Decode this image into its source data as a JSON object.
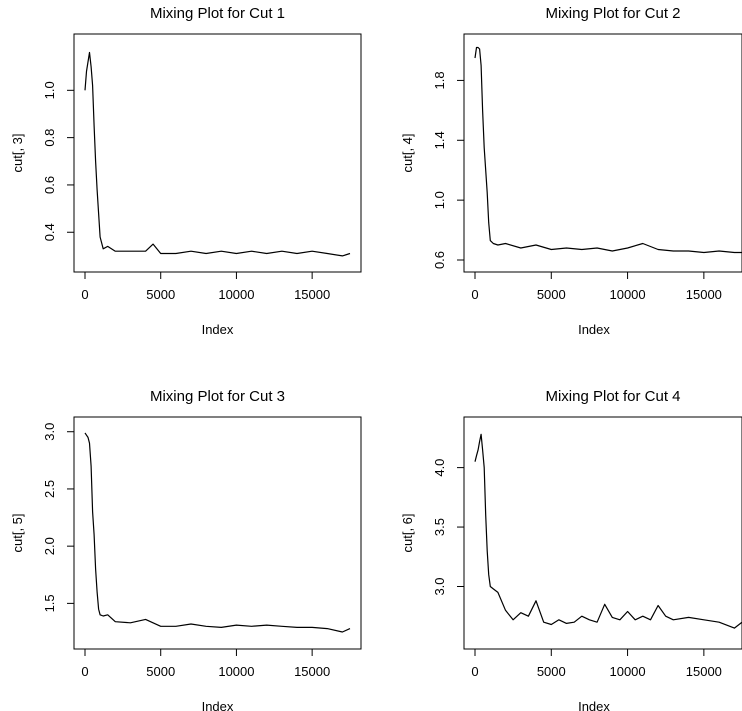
{
  "chart_data": [
    {
      "type": "line",
      "title": "Mixing Plot for Cut 1",
      "xlabel": "Index",
      "ylabel": "cut[, 3]",
      "xlim": [
        0,
        17500
      ],
      "ylim": [
        0.27,
        1.2
      ],
      "xticks": [
        0,
        5000,
        10000,
        15000
      ],
      "yticks": [
        0.4,
        0.6,
        0.8,
        1.0
      ],
      "series": [
        {
          "x": [
            0,
            100,
            200,
            300,
            400,
            500,
            600,
            700,
            800,
            900,
            1000,
            1200,
            1500,
            2000,
            3000,
            4000,
            4500,
            5000,
            6000,
            7000,
            8000,
            9000,
            10000,
            11000,
            12000,
            13000,
            14000,
            15000,
            16000,
            17000,
            17500
          ],
          "y": [
            1.0,
            1.08,
            1.12,
            1.16,
            1.1,
            1.02,
            0.85,
            0.7,
            0.58,
            0.48,
            0.38,
            0.33,
            0.34,
            0.32,
            0.32,
            0.32,
            0.35,
            0.31,
            0.31,
            0.32,
            0.31,
            0.32,
            0.31,
            0.32,
            0.31,
            0.32,
            0.31,
            0.32,
            0.31,
            0.3,
            0.31
          ]
        }
      ]
    },
    {
      "type": "line",
      "title": "Mixing Plot for Cut 2",
      "xlabel": "Index",
      "ylabel": "cut[, 4]",
      "xlim": [
        0,
        17500
      ],
      "ylim": [
        0.58,
        2.05
      ],
      "xticks": [
        0,
        5000,
        10000,
        15000
      ],
      "yticks": [
        0.6,
        1.0,
        1.4,
        1.8
      ],
      "series": [
        {
          "x": [
            0,
            100,
            200,
            300,
            400,
            500,
            600,
            700,
            800,
            900,
            1000,
            1200,
            1500,
            2000,
            3000,
            4000,
            5000,
            6000,
            7000,
            8000,
            9000,
            10000,
            11000,
            12000,
            13000,
            14000,
            15000,
            16000,
            17000,
            17500
          ],
          "y": [
            1.95,
            2.02,
            2.02,
            2.01,
            1.9,
            1.6,
            1.35,
            1.2,
            1.05,
            0.85,
            0.73,
            0.71,
            0.7,
            0.71,
            0.68,
            0.7,
            0.67,
            0.68,
            0.67,
            0.68,
            0.66,
            0.68,
            0.71,
            0.67,
            0.66,
            0.66,
            0.65,
            0.66,
            0.65,
            0.65
          ]
        }
      ]
    },
    {
      "type": "line",
      "title": "Mixing Plot for Cut 3",
      "xlabel": "Index",
      "ylabel": "cut[, 5]",
      "xlim": [
        0,
        17500
      ],
      "ylim": [
        1.18,
        3.05
      ],
      "xticks": [
        0,
        5000,
        10000,
        15000
      ],
      "yticks": [
        1.5,
        2.0,
        2.5,
        3.0
      ],
      "series": [
        {
          "x": [
            0,
            100,
            200,
            300,
            400,
            500,
            600,
            700,
            800,
            900,
            1000,
            1200,
            1500,
            2000,
            3000,
            4000,
            5000,
            6000,
            7000,
            8000,
            9000,
            10000,
            11000,
            12000,
            13000,
            14000,
            15000,
            16000,
            17000,
            17500
          ],
          "y": [
            2.99,
            2.97,
            2.95,
            2.9,
            2.7,
            2.3,
            2.1,
            1.8,
            1.6,
            1.45,
            1.4,
            1.39,
            1.4,
            1.34,
            1.33,
            1.36,
            1.3,
            1.3,
            1.32,
            1.3,
            1.29,
            1.31,
            1.3,
            1.31,
            1.3,
            1.29,
            1.29,
            1.28,
            1.25,
            1.28
          ]
        }
      ]
    },
    {
      "type": "line",
      "title": "Mixing Plot for Cut 4",
      "xlabel": "Index",
      "ylabel": "cut[, 6]",
      "xlim": [
        0,
        17500
      ],
      "ylim": [
        2.55,
        4.35
      ],
      "xticks": [
        0,
        5000,
        10000,
        15000
      ],
      "yticks": [
        3.0,
        3.5,
        4.0
      ],
      "series": [
        {
          "x": [
            0,
            100,
            200,
            300,
            400,
            500,
            600,
            700,
            800,
            900,
            1000,
            1200,
            1500,
            2000,
            2500,
            3000,
            3500,
            4000,
            4500,
            5000,
            5500,
            6000,
            6500,
            7000,
            7500,
            8000,
            8500,
            9000,
            9500,
            10000,
            10500,
            11000,
            11500,
            12000,
            12500,
            13000,
            14000,
            15000,
            16000,
            17000,
            17500
          ],
          "y": [
            4.05,
            4.1,
            4.15,
            4.22,
            4.28,
            4.15,
            4.0,
            3.6,
            3.3,
            3.1,
            3.0,
            2.98,
            2.95,
            2.8,
            2.72,
            2.78,
            2.75,
            2.88,
            2.7,
            2.68,
            2.72,
            2.69,
            2.7,
            2.75,
            2.72,
            2.7,
            2.85,
            2.74,
            2.72,
            2.79,
            2.72,
            2.75,
            2.72,
            2.84,
            2.75,
            2.72,
            2.74,
            2.72,
            2.7,
            2.65,
            2.7
          ]
        }
      ]
    }
  ]
}
